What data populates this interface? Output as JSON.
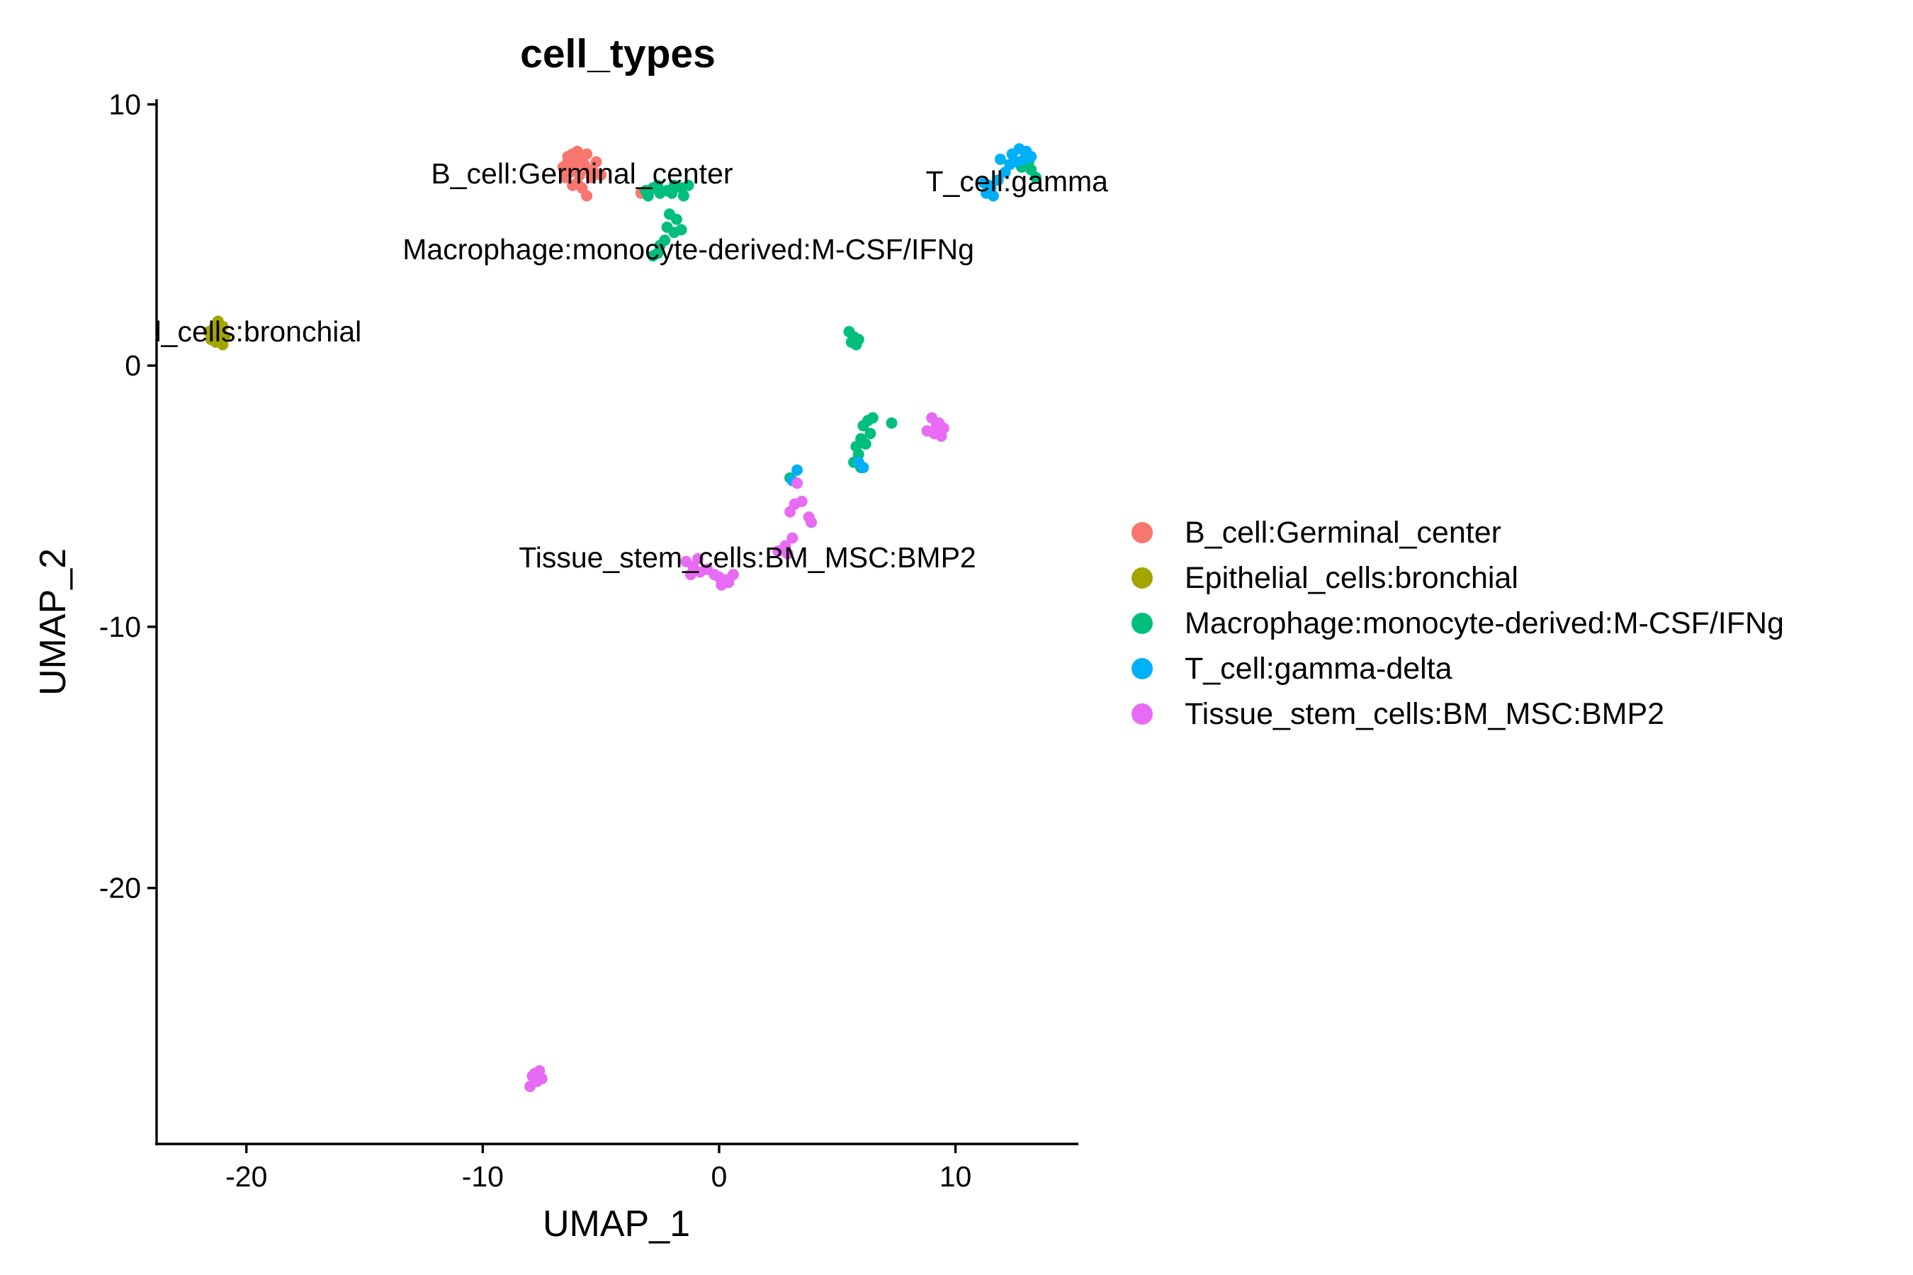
{
  "chart_data": {
    "type": "scatter",
    "title": "cell_types",
    "xlabel": "UMAP_1",
    "ylabel": "UMAP_2",
    "xlim": [
      -23.8,
      15.2
    ],
    "ylim": [
      -29.8,
      10.2
    ],
    "xticks": [
      -20,
      -10,
      0,
      10
    ],
    "yticks": [
      -20,
      -10,
      0,
      10
    ],
    "xtick_labels": [
      "-20",
      "-10",
      "0",
      "10"
    ],
    "ytick_labels": [
      "-20",
      "-10",
      "0",
      "10"
    ],
    "grid": false,
    "legend_position": "right",
    "series": [
      {
        "name": "B_cell:Germinal_center",
        "color": "#F8766D",
        "points": [
          [
            -6.2,
            8.1
          ],
          [
            -6.0,
            8.2
          ],
          [
            -5.8,
            8.0
          ],
          [
            -6.4,
            7.8
          ],
          [
            -6.1,
            7.6
          ],
          [
            -5.7,
            7.7
          ],
          [
            -6.3,
            7.4
          ],
          [
            -5.9,
            7.3
          ],
          [
            -6.5,
            7.2
          ],
          [
            -5.5,
            7.5
          ],
          [
            -6.0,
            7.0
          ],
          [
            -5.4,
            7.2
          ],
          [
            -6.2,
            6.9
          ],
          [
            -5.0,
            7.3
          ],
          [
            -5.8,
            6.8
          ],
          [
            -5.6,
            6.5
          ],
          [
            -3.3,
            6.6
          ],
          [
            -6.6,
            7.6
          ],
          [
            -5.2,
            7.8
          ],
          [
            -6.0,
            7.9
          ],
          [
            -6.4,
            8.0
          ],
          [
            -5.6,
            8.1
          ],
          [
            -5.3,
            7.4
          ]
        ]
      },
      {
        "name": "Epithelial_cells:bronchial",
        "color": "#A3A500",
        "points": [
          [
            -21.2,
            1.7
          ],
          [
            -21.0,
            1.5
          ],
          [
            -21.4,
            1.4
          ],
          [
            -21.1,
            1.2
          ],
          [
            -21.5,
            1.0
          ],
          [
            -20.9,
            1.1
          ],
          [
            -21.3,
            0.9
          ],
          [
            -21.0,
            0.8
          ],
          [
            -21.6,
            1.3
          ],
          [
            -21.2,
            1.0
          ]
        ]
      },
      {
        "name": "Macrophage:monocyte-derived:M-CSF/IFNg",
        "color": "#00BF7D",
        "points": [
          [
            -3.1,
            6.7
          ],
          [
            -2.8,
            6.8
          ],
          [
            -2.5,
            6.6
          ],
          [
            -2.2,
            6.7
          ],
          [
            -1.9,
            6.9
          ],
          [
            -1.6,
            6.8
          ],
          [
            -1.3,
            6.9
          ],
          [
            -3.0,
            6.5
          ],
          [
            -2.0,
            6.6
          ],
          [
            -1.5,
            6.5
          ],
          [
            -2.6,
            6.9
          ],
          [
            -2.1,
            5.8
          ],
          [
            -1.8,
            5.6
          ],
          [
            -2.2,
            5.3
          ],
          [
            -1.9,
            5.1
          ],
          [
            -1.6,
            5.2
          ],
          [
            -2.5,
            4.6
          ],
          [
            -2.6,
            4.3
          ],
          [
            -2.8,
            4.2
          ],
          [
            -2.3,
            4.8
          ],
          [
            5.5,
            1.3
          ],
          [
            5.7,
            1.1
          ],
          [
            5.9,
            1.0
          ],
          [
            5.6,
            0.9
          ],
          [
            5.8,
            0.8
          ],
          [
            6.5,
            -2.0
          ],
          [
            6.3,
            -2.1
          ],
          [
            6.1,
            -2.3
          ],
          [
            6.4,
            -2.6
          ],
          [
            7.3,
            -2.2
          ],
          [
            6.0,
            -2.8
          ],
          [
            6.2,
            -3.0
          ],
          [
            5.8,
            -3.1
          ],
          [
            5.9,
            -3.4
          ],
          [
            5.7,
            -3.7
          ],
          [
            6.0,
            -3.9
          ],
          [
            3.0,
            -4.3
          ],
          [
            13.1,
            7.8
          ],
          [
            13.2,
            7.5
          ],
          [
            12.8,
            7.6
          ],
          [
            13.4,
            7.2
          ]
        ]
      },
      {
        "name": "T_cell:gamma-delta",
        "color": "#00B0F6",
        "points": [
          [
            12.4,
            8.1
          ],
          [
            12.7,
            8.3
          ],
          [
            13.0,
            8.2
          ],
          [
            13.2,
            8.0
          ],
          [
            12.9,
            7.9
          ],
          [
            12.6,
            7.8
          ],
          [
            12.3,
            7.7
          ],
          [
            11.9,
            7.9
          ],
          [
            12.1,
            7.4
          ],
          [
            11.8,
            7.1
          ],
          [
            11.5,
            6.8
          ],
          [
            11.3,
            6.6
          ],
          [
            11.6,
            6.5
          ],
          [
            11.2,
            7.0
          ],
          [
            11.4,
            6.9
          ],
          [
            5.9,
            -3.7
          ],
          [
            6.1,
            -3.9
          ],
          [
            3.3,
            -4.0
          ],
          [
            3.1,
            -4.4
          ]
        ]
      },
      {
        "name": "Tissue_stem_cells:BM_MSC:BMP2",
        "color": "#E76BF3",
        "points": [
          [
            9.0,
            -2.0
          ],
          [
            9.3,
            -2.2
          ],
          [
            9.5,
            -2.4
          ],
          [
            9.1,
            -2.6
          ],
          [
            8.8,
            -2.5
          ],
          [
            9.4,
            -2.7
          ],
          [
            9.2,
            -2.3
          ],
          [
            3.3,
            -4.5
          ],
          [
            3.5,
            -5.2
          ],
          [
            3.2,
            -5.3
          ],
          [
            3.0,
            -5.6
          ],
          [
            3.8,
            -5.8
          ],
          [
            3.9,
            -6.0
          ],
          [
            3.1,
            -6.6
          ],
          [
            2.8,
            -6.9
          ],
          [
            2.5,
            -7.1
          ],
          [
            2.9,
            -7.2
          ],
          [
            -1.4,
            -7.5
          ],
          [
            -1.1,
            -7.7
          ],
          [
            -0.8,
            -7.9
          ],
          [
            -1.2,
            -8.0
          ],
          [
            -0.5,
            -7.8
          ],
          [
            -0.2,
            -8.0
          ],
          [
            0.0,
            -8.1
          ],
          [
            0.3,
            -8.2
          ],
          [
            0.6,
            -8.0
          ],
          [
            0.4,
            -8.3
          ],
          [
            0.1,
            -8.4
          ],
          [
            -0.9,
            -7.4
          ],
          [
            -7.6,
            -27.0
          ],
          [
            -7.9,
            -27.2
          ],
          [
            -7.7,
            -27.4
          ],
          [
            -8.0,
            -27.6
          ],
          [
            -7.5,
            -27.3
          ],
          [
            -7.8,
            -27.1
          ]
        ]
      }
    ],
    "cluster_labels": [
      {
        "text": "B_cell:Germinal_center",
        "x": -5.8,
        "y": 7.35
      },
      {
        "text": "T_cell:gamma",
        "x": 12.6,
        "y": 7.05
      },
      {
        "text": "Macrophage:monocyte-derived:M-CSF/IFNg",
        "x": -1.3,
        "y": 4.45
      },
      {
        "text": "l_cells:bronchial",
        "x": -19.5,
        "y": 1.3
      },
      {
        "text": "Tissue_stem_cells:BM_MSC:BMP2",
        "x": 1.2,
        "y": -7.35
      }
    ]
  }
}
